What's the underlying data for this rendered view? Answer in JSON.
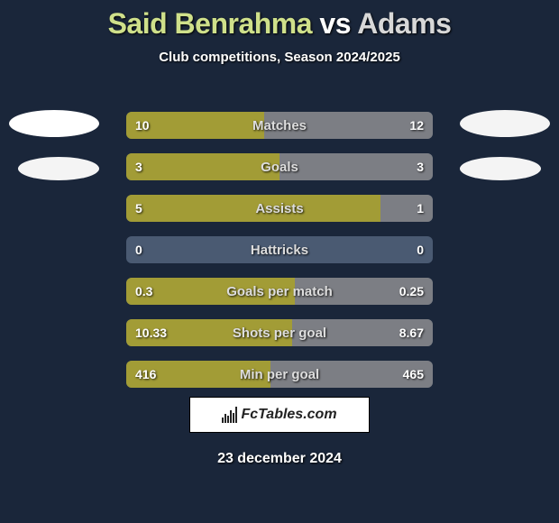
{
  "title": {
    "player1": "Said Benrahma",
    "vs": "vs",
    "player2": "Adams"
  },
  "subtitle": "Club competitions, Season 2024/2025",
  "colors": {
    "player1": "#a7a033",
    "player2": "#7e8185",
    "row_bg": "#4a5a72",
    "page_bg": "#1a263a"
  },
  "rows": [
    {
      "label": "Matches",
      "left": "10",
      "right": "12",
      "left_pct": 45,
      "right_pct": 55
    },
    {
      "label": "Goals",
      "left": "3",
      "right": "3",
      "left_pct": 50,
      "right_pct": 50
    },
    {
      "label": "Assists",
      "left": "5",
      "right": "1",
      "left_pct": 83,
      "right_pct": 17
    },
    {
      "label": "Hattricks",
      "left": "0",
      "right": "0",
      "left_pct": 0,
      "right_pct": 0
    },
    {
      "label": "Goals per match",
      "left": "0.3",
      "right": "0.25",
      "left_pct": 55,
      "right_pct": 45
    },
    {
      "label": "Shots per goal",
      "left": "10.33",
      "right": "8.67",
      "left_pct": 54,
      "right_pct": 46
    },
    {
      "label": "Min per goal",
      "left": "416",
      "right": "465",
      "left_pct": 47,
      "right_pct": 53
    }
  ],
  "logo_text": "FcTables.com",
  "date": "23 december 2024"
}
